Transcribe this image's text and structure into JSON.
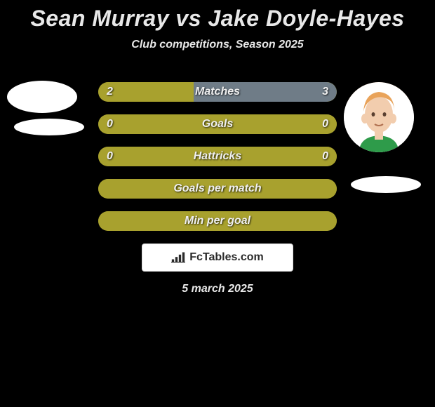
{
  "title": "Sean Murray vs Jake Doyle-Hayes",
  "subtitle": "Club competitions, Season 2025",
  "footer_date": "5 march 2025",
  "badge": {
    "text": "FcTables.com"
  },
  "colors": {
    "olive": "#a8a12e",
    "slate": "#6f7c87",
    "text": "#f0f0f0"
  },
  "players": {
    "left": {
      "name": "Sean Murray"
    },
    "right": {
      "name": "Jake Doyle-Hayes"
    }
  },
  "rows": [
    {
      "label": "Matches",
      "left": "2",
      "right": "3",
      "left_pct": 40,
      "right_pct": 60,
      "left_color": "#a8a12e",
      "right_color": "#6f7c87"
    },
    {
      "label": "Goals",
      "left": "0",
      "right": "0",
      "left_pct": 50,
      "right_pct": 50,
      "left_color": "#a8a12e",
      "right_color": "#a8a12e"
    },
    {
      "label": "Hattricks",
      "left": "0",
      "right": "0",
      "left_pct": 50,
      "right_pct": 50,
      "left_color": "#a8a12e",
      "right_color": "#a8a12e"
    },
    {
      "label": "Goals per match",
      "left": "",
      "right": "",
      "left_pct": 50,
      "right_pct": 50,
      "left_color": "#a8a12e",
      "right_color": "#a8a12e"
    },
    {
      "label": "Min per goal",
      "left": "",
      "right": "",
      "left_pct": 50,
      "right_pct": 50,
      "left_color": "#a8a12e",
      "right_color": "#a8a12e"
    }
  ]
}
